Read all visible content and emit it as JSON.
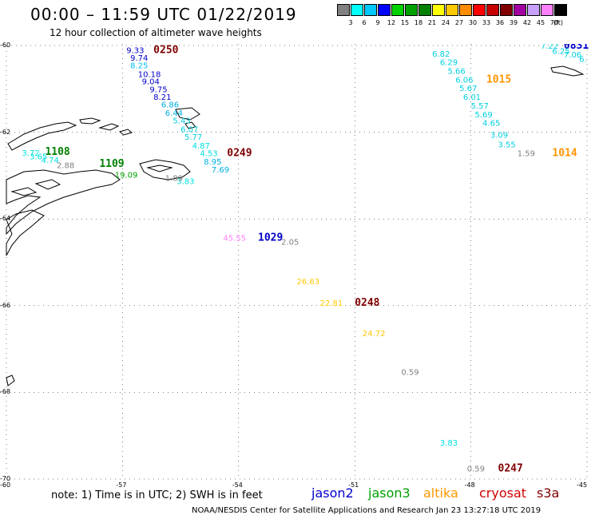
{
  "header": {
    "title": "00:00 – 11:59 UTC 01/22/2019",
    "subtitle": "12 hour collection of altimeter wave heights"
  },
  "scale": {
    "labels": [
      "3",
      "6",
      "9",
      "12",
      "15",
      "18",
      "21",
      "24",
      "27",
      "30",
      "33",
      "36",
      "39",
      "42",
      "45",
      "70"
    ],
    "unit": "(ft)",
    "colors": [
      "#808080",
      "#00ffff",
      "#00c8ff",
      "#0000ff",
      "#00d200",
      "#00a000",
      "#008000",
      "#ffff00",
      "#ffc800",
      "#ff8c00",
      "#ff0000",
      "#c80000",
      "#800000",
      "#a000a0",
      "#c8a0ff",
      "#ff80ff",
      "#000000"
    ]
  },
  "axes": {
    "lat_labels": [
      "-60",
      "-62",
      "-64",
      "-66",
      "-68",
      "-70"
    ],
    "lon_labels": [
      "-60",
      "-57",
      "-54",
      "-51",
      "-48",
      "-45"
    ]
  },
  "map_data": {
    "labels": [
      {
        "text": "9.33",
        "color": "#0000c8",
        "lon": -56.9,
        "lat": -60.1
      },
      {
        "text": "0250",
        "color": "#800000",
        "lon": -56.2,
        "lat": -60.1,
        "time": true
      },
      {
        "text": "9.74",
        "color": "#0000c8",
        "lon": -56.8,
        "lat": -60.28
      },
      {
        "text": "8.25",
        "color": "#00c0ff",
        "lon": -56.8,
        "lat": -60.45
      },
      {
        "text": "10.18",
        "color": "#0000c8",
        "lon": -56.6,
        "lat": -60.65
      },
      {
        "text": "9.04",
        "color": "#0000c8",
        "lon": -56.5,
        "lat": -60.82
      },
      {
        "text": "9.75",
        "color": "#0000c8",
        "lon": -56.3,
        "lat": -61.0
      },
      {
        "text": "8.21",
        "color": "#0000c8",
        "lon": -56.2,
        "lat": -61.18
      },
      {
        "text": "6.86",
        "color": "#00b0e0",
        "lon": -56.0,
        "lat": -61.35
      },
      {
        "text": "6.44",
        "color": "#00b0e0",
        "lon": -55.9,
        "lat": -61.55
      },
      {
        "text": "5.43",
        "color": "#00d0e0",
        "lon": -55.7,
        "lat": -61.72
      },
      {
        "text": "6.07",
        "color": "#00d0e0",
        "lon": -55.5,
        "lat": -61.92
      },
      {
        "text": "5.77",
        "color": "#00d0e0",
        "lon": -55.4,
        "lat": -62.1
      },
      {
        "text": "4.87",
        "color": "#00e0e0",
        "lon": -55.2,
        "lat": -62.3
      },
      {
        "text": "4.53",
        "color": "#00e0e0",
        "lon": -55.0,
        "lat": -62.48
      },
      {
        "text": "0249",
        "color": "#800000",
        "lon": -54.3,
        "lat": -62.48,
        "time": true
      },
      {
        "text": "8.95",
        "color": "#00b0e0",
        "lon": -54.9,
        "lat": -62.67
      },
      {
        "text": "7.69",
        "color": "#00b0e0",
        "lon": -54.7,
        "lat": -62.85
      },
      {
        "text": "3.83",
        "color": "#00e0e0",
        "lon": -55.6,
        "lat": -63.12
      },
      {
        "text": "3.72",
        "color": "#00e0e0",
        "lon": -59.6,
        "lat": -62.47
      },
      {
        "text": "1108",
        "color": "#008000",
        "lon": -59.0,
        "lat": -62.45,
        "time": true
      },
      {
        "text": "3.65",
        "color": "#00e0e0",
        "lon": -59.4,
        "lat": -62.55
      },
      {
        "text": "4.74",
        "color": "#00e0e0",
        "lon": -59.1,
        "lat": -62.63
      },
      {
        "text": "2.88",
        "color": "#808080",
        "lon": -58.7,
        "lat": -62.75
      },
      {
        "text": "1109",
        "color": "#008000",
        "lon": -57.6,
        "lat": -62.73,
        "time": true
      },
      {
        "text": "1.89",
        "color": "#808080",
        "lon": -55.9,
        "lat": -63.05
      },
      {
        "text": "19.09",
        "color": "#00a000",
        "lon": -57.2,
        "lat": -62.97
      },
      {
        "text": "45.55",
        "color": "#ff80ff",
        "lon": -54.4,
        "lat": -64.43
      },
      {
        "text": "1029",
        "color": "#0000c8",
        "lon": -53.5,
        "lat": -64.43,
        "time": true
      },
      {
        "text": "2.05",
        "color": "#808080",
        "lon": -52.9,
        "lat": -64.52
      },
      {
        "text": "26.63",
        "color": "#ffc800",
        "lon": -52.5,
        "lat": -65.43
      },
      {
        "text": "22.81",
        "color": "#ffc800",
        "lon": -51.9,
        "lat": -65.93
      },
      {
        "text": "0248",
        "color": "#800000",
        "lon": -51.0,
        "lat": -65.93,
        "time": true
      },
      {
        "text": "24.72",
        "color": "#ffc800",
        "lon": -50.8,
        "lat": -66.63
      },
      {
        "text": "0.59",
        "color": "#808080",
        "lon": -49.8,
        "lat": -67.52
      },
      {
        "text": "6.82",
        "color": "#00d0e0",
        "lon": -49.0,
        "lat": -60.18
      },
      {
        "text": "6.29",
        "color": "#00d0e0",
        "lon": -48.8,
        "lat": -60.38
      },
      {
        "text": "5.66",
        "color": "#00d0e0",
        "lon": -48.6,
        "lat": -60.58
      },
      {
        "text": "6.06",
        "color": "#00d0e0",
        "lon": -48.4,
        "lat": -60.78
      },
      {
        "text": "1015",
        "color": "#ff9600",
        "lon": -47.6,
        "lat": -60.78,
        "time": true
      },
      {
        "text": "5.67",
        "color": "#00d0e0",
        "lon": -48.3,
        "lat": -60.98
      },
      {
        "text": "6.01",
        "color": "#00d0e0",
        "lon": -48.2,
        "lat": -61.18
      },
      {
        "text": "5.57",
        "color": "#00d0e0",
        "lon": -48.0,
        "lat": -61.38
      },
      {
        "text": "5.69",
        "color": "#00d0e0",
        "lon": -47.9,
        "lat": -61.58
      },
      {
        "text": "4.65",
        "color": "#00d0e0",
        "lon": -47.7,
        "lat": -61.78
      },
      {
        "text": "3.09",
        "color": "#00d0e0",
        "lon": -47.5,
        "lat": -62.05
      },
      {
        "text": "3.55",
        "color": "#00d0e0",
        "lon": -47.3,
        "lat": -62.27
      },
      {
        "text": "1.59",
        "color": "#808080",
        "lon": -46.8,
        "lat": -62.48
      },
      {
        "text": "1014",
        "color": "#ff9600",
        "lon": -45.9,
        "lat": -62.48,
        "time": true
      },
      {
        "text": "7.22",
        "color": "#00d0e0",
        "lon": -46.2,
        "lat": -60.0
      },
      {
        "text": "0831",
        "color": "#0000c8",
        "lon": -45.6,
        "lat": -60.0,
        "time": true
      },
      {
        "text": "6.25",
        "color": "#00d0e0",
        "lon": -45.9,
        "lat": -60.12
      },
      {
        "text": "7.06",
        "color": "#00d0e0",
        "lon": -45.6,
        "lat": -60.2
      },
      {
        "text": "6.",
        "color": "#00d0e0",
        "lon": -45.2,
        "lat": -60.3
      },
      {
        "text": "3.83",
        "color": "#00e0e0",
        "lon": -48.8,
        "lat": -69.15
      },
      {
        "text": "0.59",
        "color": "#808080",
        "lon": -48.1,
        "lat": -69.75
      },
      {
        "text": "0247",
        "color": "#800000",
        "lon": -47.3,
        "lat": -69.75,
        "time": true
      }
    ]
  },
  "footer": {
    "note": "note: 1) Time is in UTC; 2) SWH is in feet",
    "satellites": [
      {
        "name": "jason2",
        "color": "#0000d0"
      },
      {
        "name": "jason3",
        "color": "#00a000"
      },
      {
        "name": "altika",
        "color": "#ff9600"
      },
      {
        "name": "cryosat",
        "color": "#d00000"
      },
      {
        "name": "s3a",
        "color": "#800000"
      }
    ],
    "credit": "NOAA/NESDIS Center for Satellite Applications and Research    Jan 23 13:27:18 UTC 2019"
  }
}
